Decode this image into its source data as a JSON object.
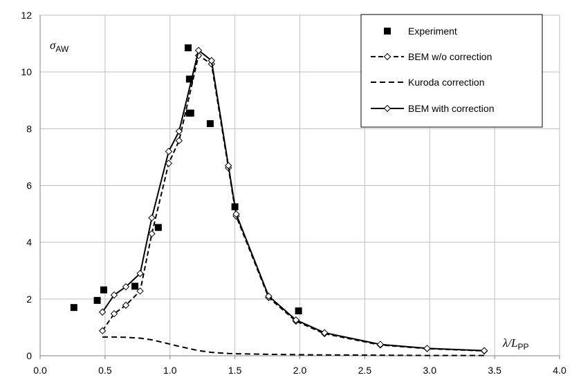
{
  "chart_data": {
    "type": "line",
    "title": "",
    "xlabel": "λ/L",
    "xlabel_sub": "PP",
    "ylabel": "σ",
    "ylabel_sub": "AW",
    "xlim": [
      0,
      4
    ],
    "ylim": [
      0,
      12
    ],
    "xticks": [
      "0.0",
      "0.5",
      "1.0",
      "1.5",
      "2.0",
      "2.5",
      "3.0",
      "3.5",
      "4.0"
    ],
    "yticks": [
      "0",
      "2",
      "4",
      "6",
      "8",
      "10",
      "12"
    ],
    "grid": true,
    "legend_position": "top-right",
    "series": [
      {
        "name": "Experiment",
        "style": "square-markers",
        "color": "#000000",
        "x": [
          0.26,
          0.44,
          0.49,
          0.73,
          0.91,
          1.14,
          1.15,
          1.16,
          1.15,
          1.31,
          1.5,
          1.99
        ],
        "y": [
          1.7,
          1.95,
          2.32,
          2.45,
          4.52,
          10.85,
          9.75,
          8.55,
          8.55,
          8.18,
          5.25,
          1.58
        ]
      },
      {
        "name": "BEM w/o correction",
        "style": "dash-diamond",
        "color": "#000000",
        "x": [
          0.48,
          0.57,
          0.66,
          0.77,
          0.86,
          0.99,
          1.07,
          1.22,
          1.32,
          1.45,
          1.51,
          1.76,
          1.97,
          2.19,
          2.62,
          2.98,
          3.42
        ],
        "y": [
          0.88,
          1.48,
          1.78,
          2.28,
          4.3,
          6.78,
          7.58,
          10.58,
          10.28,
          6.62,
          4.92,
          2.05,
          1.22,
          0.78,
          0.38,
          0.25,
          0.17
        ]
      },
      {
        "name": "Kuroda correction",
        "style": "dashed",
        "color": "#000000",
        "x": [
          0.48,
          0.57,
          0.66,
          0.77,
          0.86,
          0.99,
          1.07,
          1.22,
          1.32,
          1.45,
          1.51,
          1.76,
          1.97,
          2.19,
          2.62,
          2.98,
          3.42
        ],
        "y": [
          0.66,
          0.66,
          0.65,
          0.62,
          0.56,
          0.42,
          0.33,
          0.18,
          0.12,
          0.08,
          0.07,
          0.05,
          0.04,
          0.03,
          0.02,
          0.01,
          0.01
        ]
      },
      {
        "name": "BEM with correction",
        "style": "solid-diamond",
        "color": "#000000",
        "x": [
          0.48,
          0.57,
          0.66,
          0.77,
          0.86,
          0.99,
          1.07,
          1.22,
          1.32,
          1.45,
          1.51,
          1.76,
          1.97,
          2.19,
          2.62,
          2.98,
          3.42
        ],
        "y": [
          1.54,
          2.14,
          2.43,
          2.9,
          4.86,
          7.2,
          7.91,
          10.76,
          10.4,
          6.7,
          4.99,
          2.1,
          1.26,
          0.81,
          0.4,
          0.26,
          0.18
        ]
      }
    ]
  }
}
